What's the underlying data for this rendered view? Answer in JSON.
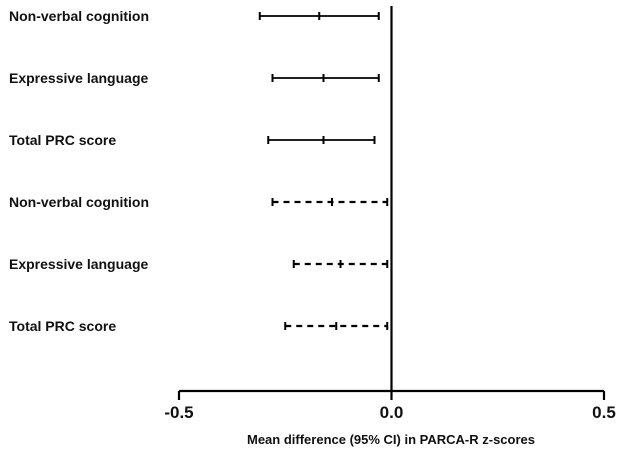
{
  "chart_data": {
    "type": "forest",
    "xlabel": "Mean difference (95% CI) in PARCA-R z-scores",
    "xlim": [
      -0.5,
      0.5
    ],
    "xticks": [
      {
        "value": -0.5,
        "label": "-0.5"
      },
      {
        "value": 0.0,
        "label": "0.0"
      },
      {
        "value": 0.5,
        "label": "0.5"
      }
    ],
    "reference_line": 0.0,
    "rows": [
      {
        "label": "Non-verbal cognition",
        "mean": -0.17,
        "lower": -0.31,
        "upper": -0.03,
        "style": "solid"
      },
      {
        "label": "Expressive language",
        "mean": -0.16,
        "lower": -0.28,
        "upper": -0.03,
        "style": "solid"
      },
      {
        "label": "Total PRC score",
        "mean": -0.16,
        "lower": -0.29,
        "upper": -0.04,
        "style": "solid"
      },
      {
        "label": "Non-verbal cognition",
        "mean": -0.14,
        "lower": -0.28,
        "upper": -0.01,
        "style": "dashed"
      },
      {
        "label": "Expressive language",
        "mean": -0.12,
        "lower": -0.23,
        "upper": -0.01,
        "style": "dashed"
      },
      {
        "label": "Total PRC score",
        "mean": -0.13,
        "lower": -0.25,
        "upper": -0.01,
        "style": "dashed"
      }
    ]
  }
}
